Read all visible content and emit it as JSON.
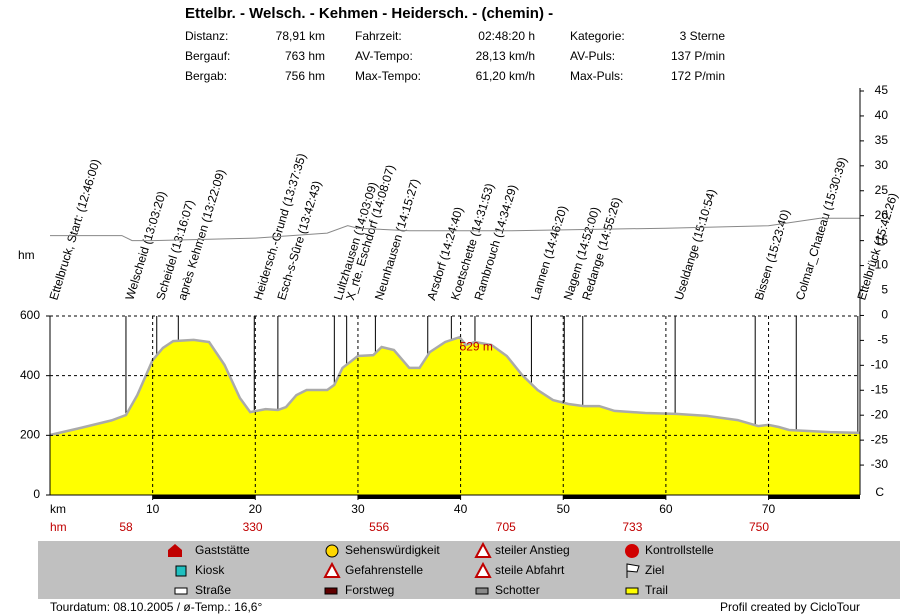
{
  "header": {
    "title": "Ettelbr. - Welsch. - Kehmen - Heidersch. - (chemin) -",
    "stats": [
      [
        "Distanz:",
        "78,91 km",
        "Fahrzeit:",
        "02:48:20 h",
        "Kategorie:",
        "3 Sterne"
      ],
      [
        "Bergauf:",
        "763 hm",
        "AV-Tempo:",
        "28,13 km/h",
        "AV-Puls:",
        "137 P/min"
      ],
      [
        "Bergab:",
        "756 hm",
        "Max-Tempo:",
        "61,20 km/h",
        "Max-Puls:",
        "172 P/min"
      ]
    ]
  },
  "chart_data": {
    "type": "area",
    "xlabel": "km",
    "ylabel": "hm",
    "y2label": "C",
    "xlim": [
      0,
      78.91
    ],
    "xticks": [
      10,
      20,
      30,
      40,
      50,
      60,
      70
    ],
    "ylim": [
      0,
      600
    ],
    "yticks": [
      0,
      200,
      400,
      600
    ],
    "y2lim": [
      -36,
      45
    ],
    "y2ticks": [
      45,
      40,
      35,
      30,
      25,
      20,
      15,
      10,
      5,
      0,
      -5,
      -10,
      -15,
      -20,
      -25,
      -30
    ],
    "grid": true,
    "color": "#ffff00",
    "line_color": "#aaaaaa",
    "temperature_color": "#888888",
    "x": [
      0,
      3,
      6,
      7.4,
      8.5,
      10,
      11,
      12,
      14,
      15.5,
      17,
      18.5,
      19.5,
      21,
      22.2,
      23,
      24,
      25,
      27,
      27.7,
      28.5,
      30,
      31.5,
      32.3,
      33.5,
      35,
      36,
      37,
      38.5,
      39.9,
      40.5,
      41.4,
      43,
      44.5,
      46,
      47.5,
      49,
      50.5,
      52,
      53.5,
      55,
      58,
      61,
      64,
      67,
      69,
      70,
      71,
      72,
      76,
      78.91
    ],
    "values": [
      201,
      225,
      250,
      268,
      335,
      452,
      493,
      516,
      520,
      513,
      436,
      325,
      278,
      288,
      285,
      295,
      335,
      352,
      352,
      369,
      426,
      466,
      469,
      496,
      486,
      426,
      426,
      479,
      513,
      529,
      503,
      513,
      503,
      466,
      402,
      352,
      318,
      305,
      298,
      298,
      282,
      275,
      272,
      265,
      251,
      231,
      235,
      228,
      218,
      211,
      208
    ],
    "temperature_x": [
      0,
      7,
      8,
      10,
      20,
      27,
      29,
      30,
      35,
      45,
      60,
      70,
      75,
      78.91
    ],
    "temperature_values": [
      16,
      16,
      15,
      15,
      15.5,
      16.5,
      18,
      17.5,
      17,
      17,
      17.5,
      18,
      19.5,
      19.5
    ],
    "annotation": {
      "text": "529 m",
      "x": 39.9,
      "y": 529
    },
    "waypoints": [
      {
        "label": "Ettelbruck, Start: (12:46:00)",
        "km": 0
      },
      {
        "label": "Welscheid (13:03:20)",
        "km": 7.4
      },
      {
        "label": "Scheidel (13:16:07)",
        "km": 10.4
      },
      {
        "label": "après Kehmen (13:22:09)",
        "km": 12.5
      },
      {
        "label": "Heidersch.-Grund (13:37:35)",
        "km": 19.9
      },
      {
        "label": "Esch-s-Sûre (13:42:43)",
        "km": 22.2
      },
      {
        "label": "Lultzhausen (14:03:09)",
        "km": 27.7
      },
      {
        "label": "X_rte. Eschdorf (14:08:07)",
        "km": 28.9
      },
      {
        "label": "Neunhausen (14:15:27)",
        "km": 31.7
      },
      {
        "label": "Arsdorf (14:24:40)",
        "km": 36.8
      },
      {
        "label": "Koetschette (14:31:53)",
        "km": 39.1
      },
      {
        "label": "Rambrouch (14:34:29)",
        "km": 41.4
      },
      {
        "label": "Lannen (14:46:20)",
        "km": 46.9
      },
      {
        "label": "Nagem (14:52:00)",
        "km": 50.1
      },
      {
        "label": "Redange (14:55:26)",
        "km": 51.9
      },
      {
        "label": "Useldange (15:10:54)",
        "km": 60.9
      },
      {
        "label": "Bissen (15:23:40)",
        "km": 68.7
      },
      {
        "label": "Colmar_Chateau (15:30:39)",
        "km": 72.7
      },
      {
        "label": "Ettelbrück (15:42:26)",
        "km": 78.7
      }
    ],
    "climb_label": "hm",
    "climb_values": [
      58,
      330,
      556,
      705,
      733,
      750
    ]
  },
  "legend": [
    [
      "Gaststätte",
      "Sehenswürdigkeit",
      "steiler Anstieg",
      "Kontrollstelle"
    ],
    [
      "Kiosk",
      "Gefahrenstelle",
      "steile Abfahrt",
      "Ziel"
    ],
    [
      "Straße",
      "Forstweg",
      "Schotter",
      "Trail"
    ]
  ],
  "footer": {
    "left": "Tourdatum: 08.10.2005  /  ø-Temp.: 16,6°",
    "right": "Profil created by CicloTour"
  }
}
